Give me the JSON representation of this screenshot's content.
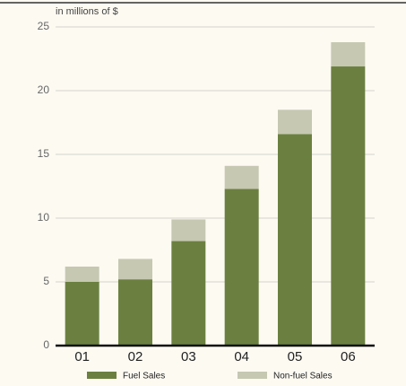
{
  "chart_data": {
    "type": "stacked_bar",
    "y_label": "in millions of $",
    "categories": [
      "01",
      "02",
      "03",
      "04",
      "05",
      "06"
    ],
    "series": [
      {
        "name": "Fuel Sales",
        "color": "#6b8040",
        "values": [
          5.0,
          5.2,
          8.2,
          12.3,
          16.6,
          21.9
        ]
      },
      {
        "name": "Non-fuel Sales",
        "color": "#c6c8b2",
        "values": [
          1.2,
          1.6,
          1.7,
          1.8,
          1.9,
          1.9
        ]
      }
    ],
    "ylim": [
      0,
      25
    ],
    "yticks": [
      0,
      5,
      10,
      15,
      20,
      25
    ],
    "grid": true,
    "legend": "bottom"
  }
}
